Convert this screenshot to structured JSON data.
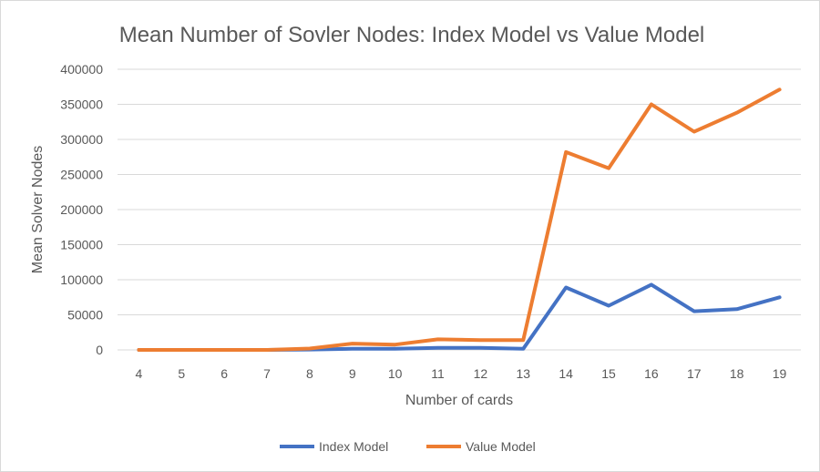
{
  "chart_data": {
    "type": "line",
    "title": "Mean Number of Sovler Nodes: Index Model vs Value Model",
    "xlabel": "Number of cards",
    "ylabel": "Mean Solver Nodes",
    "categories": [
      "4",
      "5",
      "6",
      "7",
      "8",
      "9",
      "10",
      "11",
      "12",
      "13",
      "14",
      "15",
      "16",
      "17",
      "18",
      "19"
    ],
    "ylim": [
      0,
      400000
    ],
    "yticks": [
      "0",
      "50000",
      "100000",
      "150000",
      "200000",
      "250000",
      "300000",
      "350000",
      "400000"
    ],
    "grid": true,
    "legend_position": "bottom",
    "series": [
      {
        "name": "Index Model",
        "color": "#4472C4",
        "values": [
          0,
          0,
          0,
          0,
          500,
          1500,
          1500,
          3000,
          3000,
          1500,
          89000,
          63000,
          93000,
          55000,
          58000,
          75000
        ]
      },
      {
        "name": "Value Model",
        "color": "#ED7D31",
        "values": [
          0,
          0,
          0,
          0,
          2000,
          9000,
          7500,
          15000,
          14000,
          14000,
          282000,
          259000,
          350000,
          311000,
          338000,
          371000
        ]
      }
    ]
  }
}
